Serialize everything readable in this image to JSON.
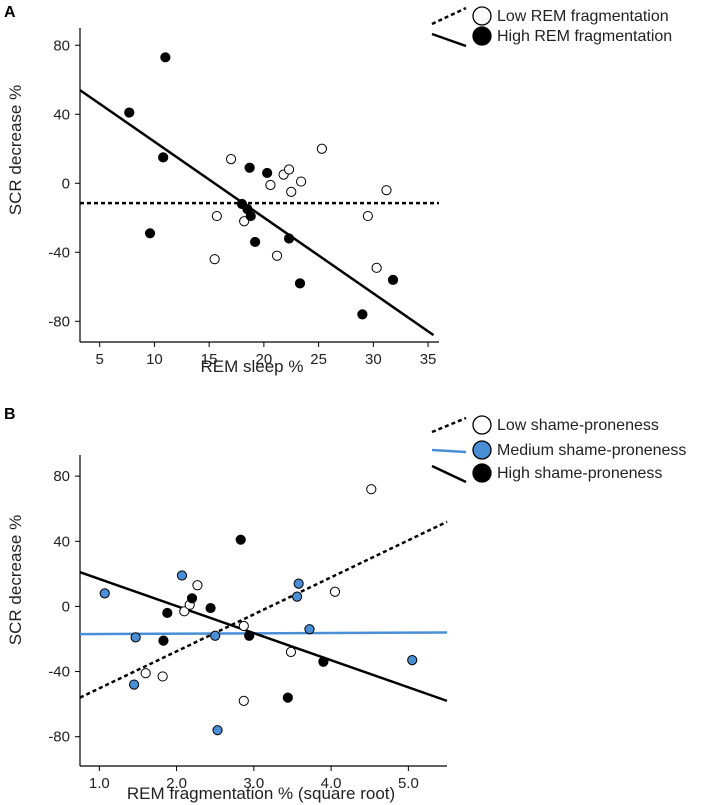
{
  "chart_data": [
    {
      "panel": "A",
      "type": "scatter",
      "xlabel": "REM sleep %",
      "ylabel": "SCR decrease %",
      "xlim": [
        3.2,
        36
      ],
      "ylim": [
        -92,
        90
      ],
      "xticks": [
        5,
        10,
        15,
        20,
        25,
        30,
        35
      ],
      "yticks": [
        80,
        40,
        0,
        -40,
        -80
      ],
      "ytick_labels": [
        "80",
        "40",
        "0",
        "-40",
        "-80"
      ],
      "series": [
        {
          "name": "Low REM fragmentation",
          "marker_color": "#ffffff",
          "line_color": "#000000",
          "line_style": "dashed",
          "points": [
            [
              17,
              14
            ],
            [
              18.2,
              -22
            ],
            [
              20.6,
              -1
            ],
            [
              21.8,
              5
            ],
            [
              22.3,
              8
            ],
            [
              22.5,
              -5
            ],
            [
              23.4,
              1
            ],
            [
              25.3,
              20
            ],
            [
              31.2,
              -4
            ],
            [
              15.5,
              -44
            ],
            [
              15.7,
              -19
            ],
            [
              21.2,
              -42
            ],
            [
              29.5,
              -19
            ],
            [
              30.3,
              -49
            ]
          ],
          "fit": [
            [
              3.2,
              -11.5
            ],
            [
              36,
              -11.5
            ]
          ]
        },
        {
          "name": "High REM fragmentation",
          "marker_color": "#000000",
          "line_color": "#000000",
          "line_style": "solid",
          "points": [
            [
              7.7,
              41
            ],
            [
              11,
              73
            ],
            [
              10.8,
              15
            ],
            [
              9.6,
              -29
            ],
            [
              18,
              -12
            ],
            [
              18.5,
              -15
            ],
            [
              18.8,
              -19
            ],
            [
              18.7,
              9
            ],
            [
              19.2,
              -34
            ],
            [
              20.3,
              6
            ],
            [
              22.3,
              -32
            ],
            [
              23.3,
              -58
            ],
            [
              29,
              -76
            ],
            [
              31.8,
              -56
            ]
          ],
          "fit": [
            [
              3.2,
              54
            ],
            [
              35.5,
              -88
            ]
          ]
        }
      ]
    },
    {
      "panel": "B",
      "type": "scatter",
      "xlabel": "REM fragmentation % (square root)",
      "ylabel": "SCR decrease %",
      "xlim": [
        0.75,
        5.5
      ],
      "ylim": [
        -98,
        93
      ],
      "xticks": [
        1.0,
        2.0,
        3.0,
        4.0,
        5.0
      ],
      "xtick_labels": [
        "1.0",
        "2.0",
        "3.0",
        "4.0",
        "5.0"
      ],
      "yticks": [
        80,
        40,
        0,
        -40,
        -80
      ],
      "ytick_labels": [
        "80",
        "40",
        "0",
        "-40",
        "-80"
      ],
      "series": [
        {
          "name": "Low shame-proneness",
          "marker_color": "#ffffff",
          "line_color": "#000000",
          "line_style": "dashed",
          "points": [
            [
              2.27,
              13
            ],
            [
              2.1,
              -3
            ],
            [
              2.17,
              1
            ],
            [
              1.6,
              -41
            ],
            [
              1.82,
              -43
            ],
            [
              2.87,
              -12
            ],
            [
              3.48,
              -28
            ],
            [
              2.87,
              -58
            ],
            [
              4.05,
              9
            ],
            [
              4.52,
              72
            ]
          ],
          "fit": [
            [
              0.75,
              -56
            ],
            [
              5.5,
              52
            ]
          ]
        },
        {
          "name": "Medium shame-proneness",
          "marker_color": "#4a8fd6",
          "line_color": "#4a8fd6",
          "line_style": "solid",
          "points": [
            [
              1.07,
              8
            ],
            [
              1.47,
              -19
            ],
            [
              1.45,
              -48
            ],
            [
              2.07,
              19
            ],
            [
              2.5,
              -18
            ],
            [
              3.58,
              14
            ],
            [
              3.56,
              6
            ],
            [
              3.72,
              -14
            ],
            [
              2.53,
              -76
            ],
            [
              5.05,
              -33
            ]
          ],
          "fit": [
            [
              0.75,
              -17
            ],
            [
              5.5,
              -16
            ]
          ]
        },
        {
          "name": "High shame-proneness",
          "marker_color": "#000000",
          "line_color": "#000000",
          "line_style": "solid",
          "points": [
            [
              1.88,
              -4
            ],
            [
              1.83,
              -21
            ],
            [
              2.2,
              5
            ],
            [
              2.44,
              -1
            ],
            [
              2.83,
              41
            ],
            [
              2.94,
              -18
            ],
            [
              3.44,
              -56
            ],
            [
              3.9,
              -34
            ]
          ],
          "fit": [
            [
              0.75,
              21
            ],
            [
              5.5,
              -58
            ]
          ]
        }
      ]
    }
  ]
}
